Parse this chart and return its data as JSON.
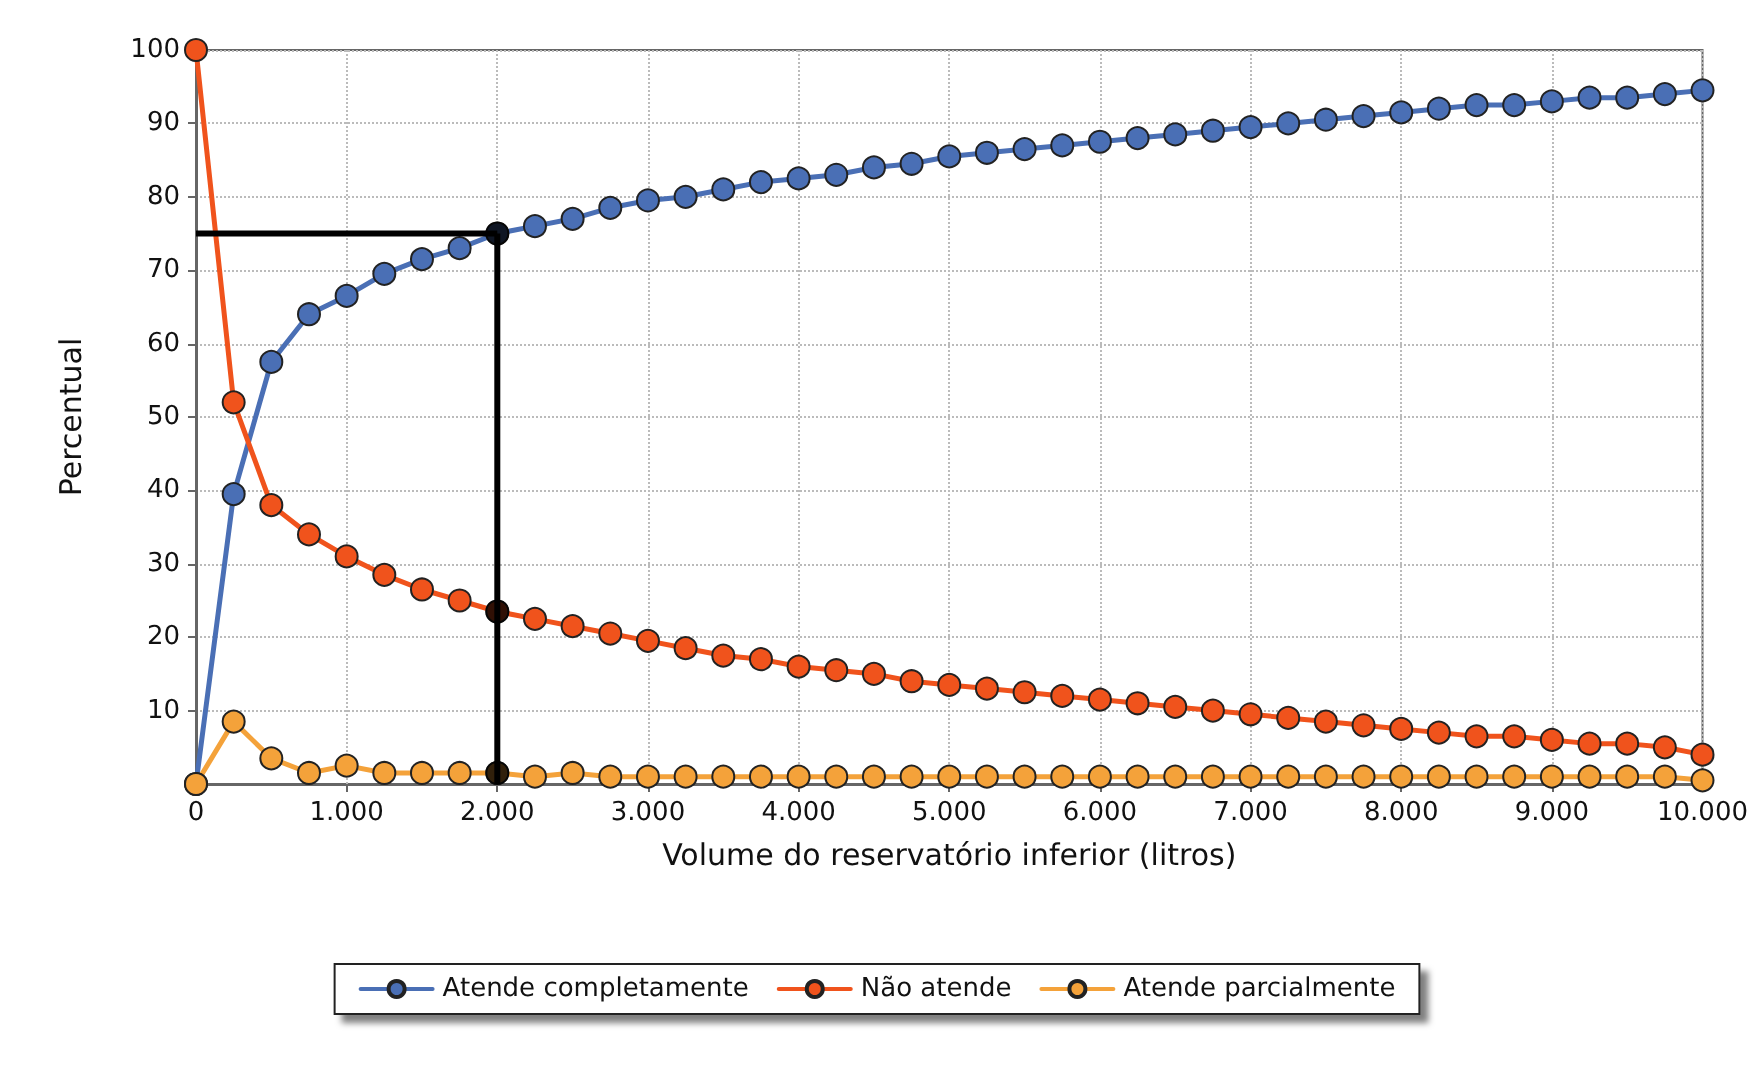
{
  "chart_data": {
    "type": "line",
    "xlabel": "Volume do reservatório inferior (litros)",
    "ylabel": "Percentual",
    "x": [
      0,
      250,
      500,
      750,
      1000,
      1250,
      1500,
      1750,
      2000,
      2250,
      2500,
      2750,
      3000,
      3250,
      3500,
      3750,
      4000,
      4250,
      4500,
      4750,
      5000,
      5250,
      5500,
      5750,
      6000,
      6250,
      6500,
      6750,
      7000,
      7250,
      7500,
      7750,
      8000,
      8250,
      8500,
      8750,
      9000,
      9250,
      9500,
      9750,
      10000
    ],
    "series": [
      {
        "name": "Atende completamente",
        "color": "#4a6fb5",
        "values": [
          0,
          39.5,
          57.5,
          64,
          66.5,
          69.5,
          71.5,
          73,
          75,
          76,
          77,
          78.5,
          79.5,
          80,
          81,
          82,
          82.5,
          83,
          84,
          84.5,
          85.5,
          86,
          86.5,
          87,
          87.5,
          88,
          88.5,
          89,
          89.5,
          90,
          90.5,
          91,
          91.5,
          92,
          92.5,
          92.5,
          93,
          93.5,
          93.5,
          94,
          94.5
        ]
      },
      {
        "name": "Não atende",
        "color": "#f0531c",
        "values": [
          100,
          52,
          38,
          34,
          31,
          28.5,
          26.5,
          25,
          23.5,
          22.5,
          21.5,
          20.5,
          19.5,
          18.5,
          17.5,
          17,
          16,
          15.5,
          15,
          14,
          13.5,
          13,
          12.5,
          12,
          11.5,
          11,
          10.5,
          10,
          9.5,
          9,
          8.5,
          8,
          7.5,
          7,
          6.5,
          6.5,
          6,
          5.5,
          5.5,
          5,
          4
        ]
      },
      {
        "name": "Atende parcialmente",
        "color": "#f4a23a",
        "values": [
          0,
          8.5,
          3.5,
          1.5,
          2.5,
          1.5,
          1.5,
          1.5,
          1.5,
          1,
          1.5,
          1,
          1,
          1,
          1,
          1,
          1,
          1,
          1,
          1,
          1,
          1,
          1,
          1,
          1,
          1,
          1,
          1,
          1,
          1,
          1,
          1,
          1,
          1,
          1,
          1,
          1,
          1,
          1,
          1,
          0.5
        ]
      }
    ],
    "xlim": [
      0,
      10000
    ],
    "xticks": [
      0,
      {
        "value": 1000,
        "label": "1.000"
      },
      {
        "value": 2000,
        "label": "2.000"
      },
      {
        "value": 3000,
        "label": "3.000"
      },
      {
        "value": 4000,
        "label": "4.000"
      },
      {
        "value": 5000,
        "label": "5.000"
      },
      {
        "value": 6000,
        "label": "6.000"
      },
      {
        "value": 7000,
        "label": "7.000"
      },
      {
        "value": 8000,
        "label": "8.000"
      },
      {
        "value": 9000,
        "label": "9.000"
      },
      {
        "value": 10000,
        "label": "10.000"
      }
    ],
    "ylim": [
      0,
      100
    ],
    "yticks": [
      {
        "value": 0,
        "label": null
      },
      10,
      20,
      30,
      40,
      50,
      60,
      70,
      80,
      90,
      100
    ],
    "ref_lines": [
      {
        "axis": "y",
        "value": 75,
        "color": "#000000",
        "line_style": "solid"
      },
      {
        "axis": "x",
        "value": 2000,
        "color": "#000000",
        "line_style": "solid"
      }
    ],
    "grid": true,
    "legend": "bottom",
    "marker": "circle",
    "line_style": "solid"
  }
}
